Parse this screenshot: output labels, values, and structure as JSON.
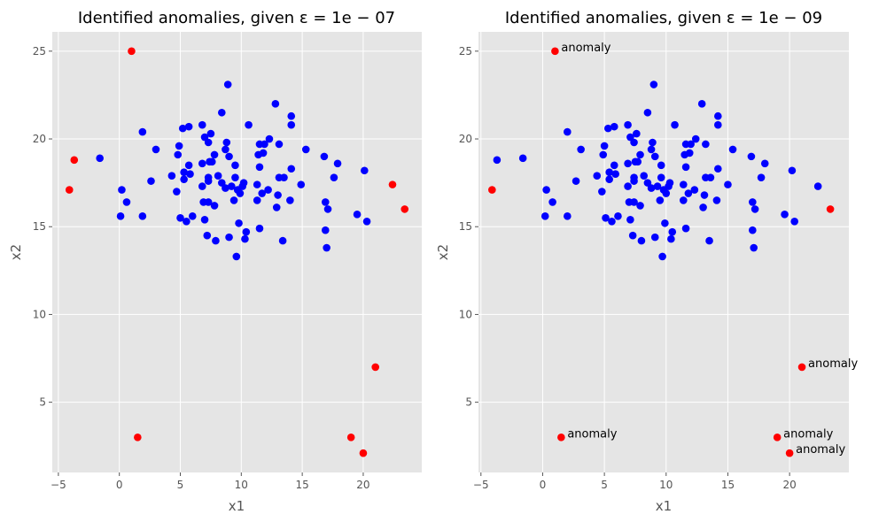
{
  "chart_data": [
    {
      "type": "scatter",
      "title": "Identified anomalies, given ε = 1e − 07",
      "xlabel": "x1",
      "ylabel": "x2",
      "xlim": [
        -5.5,
        24.8
      ],
      "ylim": [
        1.0,
        26.1
      ],
      "xticks": [
        -5,
        0,
        5,
        10,
        15,
        20
      ],
      "yticks": [
        5,
        10,
        15,
        20,
        25
      ],
      "grid": true,
      "style": "ggplot",
      "colors": {
        "normal": "#0000ff",
        "anomaly": "#ff0000",
        "background": "#e5e5e5",
        "grid": "#ffffff"
      },
      "series": [
        {
          "color": "#0000ff",
          "points": [
            [
              -1.6,
              18.9
            ],
            [
              0.1,
              15.6
            ],
            [
              0.2,
              17.1
            ],
            [
              0.6,
              16.4
            ],
            [
              1.9,
              20.4
            ],
            [
              1.9,
              15.6
            ],
            [
              2.6,
              17.6
            ],
            [
              3.0,
              19.4
            ],
            [
              4.3,
              17.9
            ],
            [
              4.7,
              17.0
            ],
            [
              4.8,
              19.1
            ],
            [
              4.9,
              19.6
            ],
            [
              5.0,
              15.5
            ],
            [
              5.2,
              20.6
            ],
            [
              5.3,
              18.1
            ],
            [
              5.3,
              17.7
            ],
            [
              5.5,
              15.3
            ],
            [
              5.7,
              20.7
            ],
            [
              5.7,
              18.5
            ],
            [
              5.8,
              18.0
            ],
            [
              6.0,
              15.6
            ],
            [
              6.8,
              17.3
            ],
            [
              6.8,
              20.8
            ],
            [
              6.8,
              18.6
            ],
            [
              6.9,
              16.4
            ],
            [
              7.0,
              15.4
            ],
            [
              7.0,
              20.1
            ],
            [
              7.2,
              14.5
            ],
            [
              7.3,
              19.8
            ],
            [
              7.3,
              17.6
            ],
            [
              7.3,
              17.8
            ],
            [
              7.3,
              16.4
            ],
            [
              7.4,
              18.7
            ],
            [
              7.5,
              20.3
            ],
            [
              7.6,
              18.7
            ],
            [
              7.8,
              16.2
            ],
            [
              7.8,
              19.1
            ],
            [
              7.9,
              14.2
            ],
            [
              8.1,
              17.9
            ],
            [
              8.4,
              21.5
            ],
            [
              8.4,
              17.5
            ],
            [
              8.7,
              19.4
            ],
            [
              8.7,
              17.2
            ],
            [
              8.8,
              19.8
            ],
            [
              8.9,
              23.1
            ],
            [
              9.0,
              14.4
            ],
            [
              9.0,
              19.0
            ],
            [
              9.2,
              17.3
            ],
            [
              9.4,
              16.5
            ],
            [
              9.5,
              18.5
            ],
            [
              9.5,
              17.8
            ],
            [
              9.6,
              13.3
            ],
            [
              9.7,
              17.1
            ],
            [
              9.8,
              15.2
            ],
            [
              9.9,
              16.9
            ],
            [
              10.1,
              17.3
            ],
            [
              10.2,
              17.5
            ],
            [
              10.3,
              14.3
            ],
            [
              10.4,
              14.7
            ],
            [
              10.6,
              20.8
            ],
            [
              11.3,
              17.4
            ],
            [
              11.3,
              16.5
            ],
            [
              11.4,
              19.1
            ],
            [
              11.5,
              18.4
            ],
            [
              11.5,
              14.9
            ],
            [
              11.5,
              19.7
            ],
            [
              11.7,
              16.9
            ],
            [
              11.8,
              19.2
            ],
            [
              11.9,
              19.7
            ],
            [
              12.2,
              17.1
            ],
            [
              12.3,
              20.0
            ],
            [
              12.8,
              22.0
            ],
            [
              12.9,
              16.1
            ],
            [
              13.0,
              16.8
            ],
            [
              13.1,
              19.7
            ],
            [
              13.1,
              17.8
            ],
            [
              13.4,
              14.2
            ],
            [
              13.5,
              17.8
            ],
            [
              14.0,
              16.5
            ],
            [
              14.1,
              21.3
            ],
            [
              14.1,
              20.8
            ],
            [
              14.1,
              18.3
            ],
            [
              14.9,
              17.4
            ],
            [
              15.3,
              19.4
            ],
            [
              16.8,
              19.0
            ],
            [
              16.9,
              16.4
            ],
            [
              16.9,
              14.8
            ],
            [
              17.0,
              13.8
            ],
            [
              17.1,
              16.0
            ],
            [
              17.6,
              17.8
            ],
            [
              17.9,
              18.6
            ],
            [
              19.5,
              15.7
            ],
            [
              20.1,
              18.2
            ],
            [
              20.3,
              15.3
            ]
          ]
        },
        {
          "color": "#ff0000",
          "points": [
            [
              1.0,
              25.0
            ],
            [
              -3.7,
              18.8
            ],
            [
              -4.1,
              17.1
            ],
            [
              1.5,
              3.0
            ],
            [
              22.4,
              17.4
            ],
            [
              23.4,
              16.0
            ],
            [
              21.0,
              7.0
            ],
            [
              19.0,
              3.0
            ],
            [
              20.0,
              2.1
            ]
          ]
        }
      ],
      "annotations": []
    },
    {
      "type": "scatter",
      "title": "Identified anomalies, given ε = 1e − 09",
      "xlabel": "x1",
      "ylabel": "x2",
      "xlim": [
        -5.2,
        24.8
      ],
      "ylim": [
        1.0,
        26.1
      ],
      "xticks": [
        -5,
        0,
        5,
        10,
        15,
        20
      ],
      "yticks": [
        5,
        10,
        15,
        20,
        25
      ],
      "grid": true,
      "style": "ggplot",
      "colors": {
        "normal": "#0000ff",
        "anomaly": "#ff0000",
        "background": "#e5e5e5",
        "grid": "#ffffff"
      },
      "series": [
        {
          "color": "#0000ff",
          "points": [
            [
              -3.7,
              18.8
            ],
            [
              -1.6,
              18.9
            ],
            [
              0.2,
              15.6
            ],
            [
              0.3,
              17.1
            ],
            [
              0.8,
              16.4
            ],
            [
              2.0,
              20.4
            ],
            [
              2.0,
              15.6
            ],
            [
              2.7,
              17.6
            ],
            [
              3.1,
              19.4
            ],
            [
              4.4,
              17.9
            ],
            [
              4.8,
              17.0
            ],
            [
              4.9,
              19.1
            ],
            [
              5.0,
              19.6
            ],
            [
              5.1,
              15.5
            ],
            [
              5.3,
              20.6
            ],
            [
              5.4,
              18.1
            ],
            [
              5.4,
              17.7
            ],
            [
              5.6,
              15.3
            ],
            [
              5.8,
              20.7
            ],
            [
              5.8,
              18.5
            ],
            [
              5.9,
              18.0
            ],
            [
              6.1,
              15.6
            ],
            [
              6.9,
              17.3
            ],
            [
              6.9,
              20.8
            ],
            [
              6.9,
              18.6
            ],
            [
              7.0,
              16.4
            ],
            [
              7.1,
              15.4
            ],
            [
              7.1,
              20.1
            ],
            [
              7.3,
              14.5
            ],
            [
              7.4,
              19.8
            ],
            [
              7.4,
              17.6
            ],
            [
              7.4,
              17.8
            ],
            [
              7.4,
              16.4
            ],
            [
              7.5,
              18.7
            ],
            [
              7.6,
              20.3
            ],
            [
              7.7,
              18.7
            ],
            [
              7.9,
              16.2
            ],
            [
              7.9,
              19.1
            ],
            [
              8.0,
              14.2
            ],
            [
              8.2,
              17.9
            ],
            [
              8.5,
              21.5
            ],
            [
              8.5,
              17.5
            ],
            [
              8.8,
              19.4
            ],
            [
              8.8,
              17.2
            ],
            [
              8.9,
              19.8
            ],
            [
              9.0,
              23.1
            ],
            [
              9.1,
              14.4
            ],
            [
              9.1,
              19.0
            ],
            [
              9.3,
              17.3
            ],
            [
              9.5,
              16.5
            ],
            [
              9.6,
              18.5
            ],
            [
              9.6,
              17.8
            ],
            [
              9.7,
              13.3
            ],
            [
              9.8,
              17.1
            ],
            [
              9.9,
              15.2
            ],
            [
              10.0,
              16.9
            ],
            [
              10.2,
              17.3
            ],
            [
              10.3,
              17.5
            ],
            [
              10.4,
              14.3
            ],
            [
              10.5,
              14.7
            ],
            [
              10.7,
              20.8
            ],
            [
              11.4,
              17.4
            ],
            [
              11.4,
              16.5
            ],
            [
              11.5,
              19.1
            ],
            [
              11.6,
              18.4
            ],
            [
              11.6,
              14.9
            ],
            [
              11.6,
              19.7
            ],
            [
              11.8,
              16.9
            ],
            [
              11.9,
              19.2
            ],
            [
              12.0,
              19.7
            ],
            [
              12.3,
              17.1
            ],
            [
              12.4,
              20.0
            ],
            [
              12.9,
              22.0
            ],
            [
              13.0,
              16.1
            ],
            [
              13.1,
              16.8
            ],
            [
              13.2,
              19.7
            ],
            [
              13.2,
              17.8
            ],
            [
              13.5,
              14.2
            ],
            [
              13.6,
              17.8
            ],
            [
              14.1,
              16.5
            ],
            [
              14.2,
              21.3
            ],
            [
              14.2,
              20.8
            ],
            [
              14.2,
              18.3
            ],
            [
              15.0,
              17.4
            ],
            [
              15.4,
              19.4
            ],
            [
              16.9,
              19.0
            ],
            [
              17.0,
              16.4
            ],
            [
              17.0,
              14.8
            ],
            [
              17.1,
              13.8
            ],
            [
              17.2,
              16.0
            ],
            [
              17.7,
              17.8
            ],
            [
              18.0,
              18.6
            ],
            [
              19.6,
              15.7
            ],
            [
              20.2,
              18.2
            ],
            [
              20.4,
              15.3
            ],
            [
              22.3,
              17.3
            ]
          ]
        },
        {
          "color": "#ff0000",
          "points": [
            [
              1.0,
              25.0
            ],
            [
              -4.1,
              17.1
            ],
            [
              1.5,
              3.0
            ],
            [
              23.3,
              16.0
            ],
            [
              21.0,
              7.0
            ],
            [
              19.0,
              3.0
            ],
            [
              20.0,
              2.1
            ]
          ]
        }
      ],
      "annotations": [
        {
          "text": "anomaly",
          "x": 1.0,
          "y": 25.0
        },
        {
          "text": "anomaly",
          "x": 1.5,
          "y": 3.0
        },
        {
          "text": "anomaly",
          "x": 21.0,
          "y": 7.0
        },
        {
          "text": "anomaly",
          "x": 19.0,
          "y": 3.0
        },
        {
          "text": "anomaly",
          "x": 20.0,
          "y": 2.1
        }
      ]
    }
  ]
}
